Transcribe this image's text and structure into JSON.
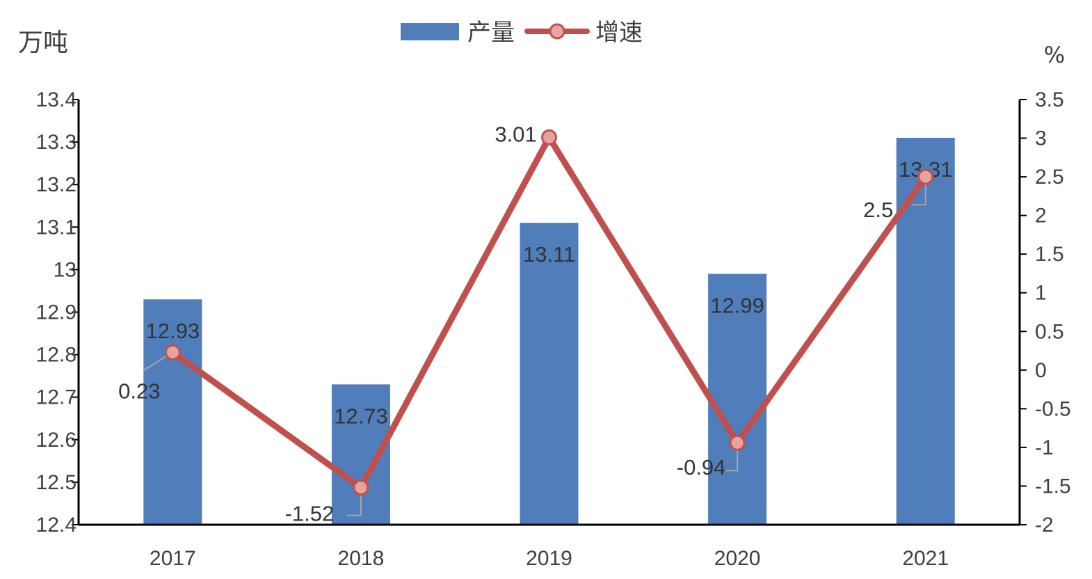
{
  "chart_data": {
    "type": "bar",
    "categories": [
      "2017",
      "2018",
      "2019",
      "2020",
      "2021"
    ],
    "left_axis": {
      "unit": "万吨",
      "ylim": [
        12.4,
        13.4
      ],
      "ticks": [
        "12.4",
        "12.5",
        "12.6",
        "12.7",
        "12.8",
        "12.9",
        "13",
        "13.1",
        "13.2",
        "13.3",
        "13.4"
      ]
    },
    "right_axis": {
      "unit": "%",
      "ylim": [
        -2,
        3.5
      ],
      "ticks": [
        "-2",
        "-1.5",
        "-1",
        "-0.5",
        "0",
        "0.5",
        "1",
        "1.5",
        "2",
        "2.5",
        "3",
        "3.5"
      ]
    },
    "series": [
      {
        "name": "产量",
        "type": "bar",
        "axis": "left",
        "color": "#4F7EBB",
        "values": [
          12.93,
          12.73,
          13.11,
          12.99,
          13.31
        ],
        "labels": [
          "12.93",
          "12.73",
          "13.11",
          "12.99",
          "13.31"
        ]
      },
      {
        "name": "增速",
        "type": "line",
        "axis": "right",
        "color": "#C0504D",
        "marker_fill": "#E8A3A1",
        "values": [
          0.23,
          -1.52,
          3.01,
          -0.94,
          2.5
        ],
        "labels": [
          "0.23",
          "-1.52",
          "3.01",
          "-0.94",
          "2.5"
        ]
      }
    ],
    "legend": {
      "position": "top-center",
      "entries": [
        "产量",
        "增速"
      ]
    },
    "grid": false
  }
}
